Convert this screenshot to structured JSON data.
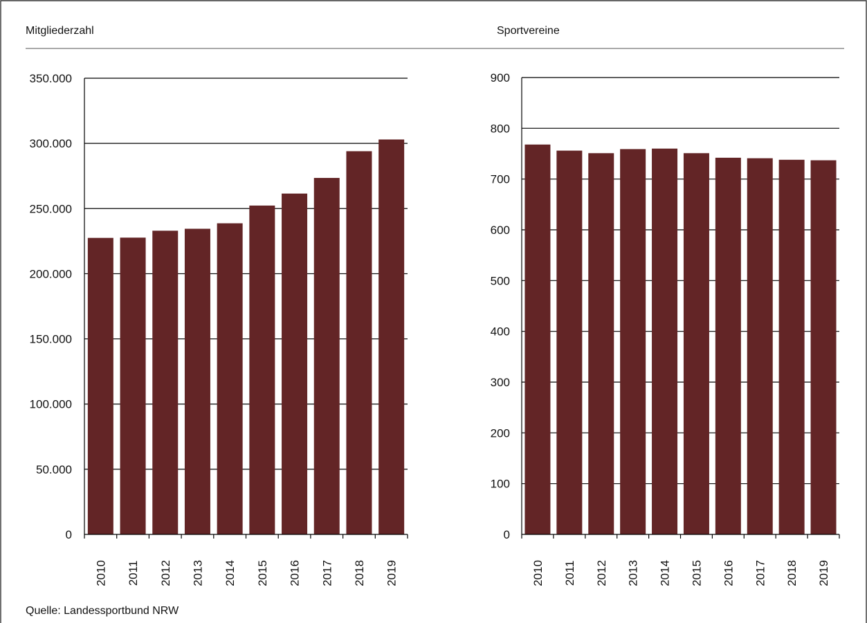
{
  "colors": {
    "bar": "#632526",
    "axis": "#000000",
    "frame": "#333333"
  },
  "headers": {
    "left": "Mitgliederzahl",
    "right": "Sportvereine"
  },
  "source": "Quelle: Landessportbund NRW",
  "chart_data": [
    {
      "type": "bar",
      "title": "Mitgliederzahl",
      "categories": [
        "2010",
        "2011",
        "2012",
        "2013",
        "2014",
        "2015",
        "2016",
        "2017",
        "2018",
        "2019"
      ],
      "values": [
        227500,
        227700,
        233000,
        234500,
        238700,
        252300,
        261500,
        273500,
        294000,
        303000
      ],
      "ylim": [
        0,
        350000
      ],
      "yticks": [
        0,
        50000,
        100000,
        150000,
        200000,
        250000,
        300000,
        350000
      ],
      "ytick_labels": [
        "0",
        "50.000",
        "100.000",
        "150.000",
        "200.000",
        "250.000",
        "300.000",
        "350.000"
      ],
      "grid": true
    },
    {
      "type": "bar",
      "title": "Sportvereine",
      "categories": [
        "2010",
        "2011",
        "2012",
        "2013",
        "2014",
        "2015",
        "2016",
        "2017",
        "2018",
        "2019"
      ],
      "values": [
        768,
        756,
        751,
        759,
        760,
        751,
        742,
        741,
        738,
        737
      ],
      "ylim": [
        0,
        900
      ],
      "yticks": [
        0,
        100,
        200,
        300,
        400,
        500,
        600,
        700,
        800,
        900
      ],
      "ytick_labels": [
        "0",
        "100",
        "200",
        "300",
        "400",
        "500",
        "600",
        "700",
        "800",
        "900"
      ],
      "grid": true
    }
  ]
}
